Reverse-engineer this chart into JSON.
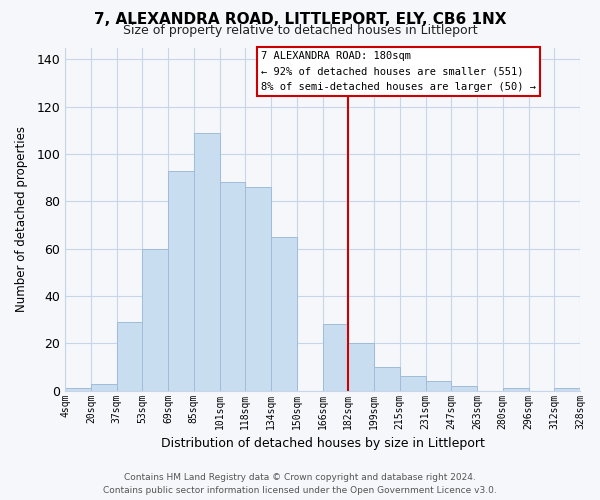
{
  "title": "7, ALEXANDRA ROAD, LITTLEPORT, ELY, CB6 1NX",
  "subtitle": "Size of property relative to detached houses in Littleport",
  "xlabel": "Distribution of detached houses by size in Littleport",
  "ylabel": "Number of detached properties",
  "bar_labels": [
    "4sqm",
    "20sqm",
    "37sqm",
    "53sqm",
    "69sqm",
    "85sqm",
    "101sqm",
    "118sqm",
    "134sqm",
    "150sqm",
    "166sqm",
    "182sqm",
    "199sqm",
    "215sqm",
    "231sqm",
    "247sqm",
    "263sqm",
    "280sqm",
    "296sqm",
    "312sqm",
    "328sqm"
  ],
  "bar_heights": [
    1,
    3,
    29,
    60,
    93,
    109,
    88,
    86,
    65,
    0,
    28,
    20,
    10,
    6,
    4,
    2,
    0,
    1,
    0,
    1
  ],
  "bar_color": "#c8ddf0",
  "bar_edge_color": "#a0bcd8",
  "vline_x": 11,
  "vline_color": "#cc0000",
  "ylim": [
    0,
    145
  ],
  "yticks": [
    0,
    20,
    40,
    60,
    80,
    100,
    120,
    140
  ],
  "annotation_title": "7 ALEXANDRA ROAD: 180sqm",
  "annotation_line1": "← 92% of detached houses are smaller (551)",
  "annotation_line2": "8% of semi-detached houses are larger (50) →",
  "footer_line1": "Contains HM Land Registry data © Crown copyright and database right 2024.",
  "footer_line2": "Contains public sector information licensed under the Open Government Licence v3.0.",
  "bg_color": "#f5f7fa",
  "grid_color": "#c8d4e8"
}
